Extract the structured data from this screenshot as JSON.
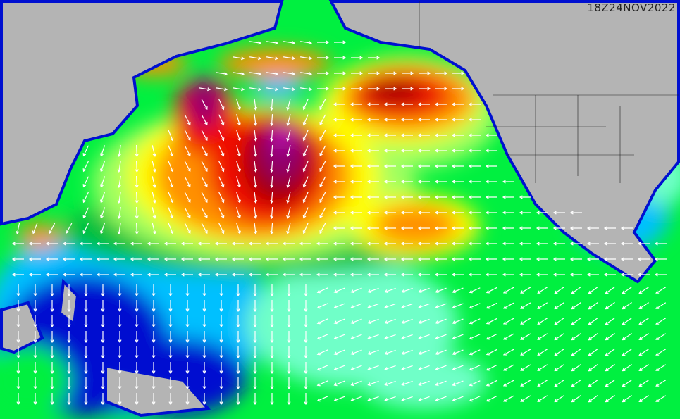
{
  "map": {
    "timestamp": "18Z24NOV2022",
    "colors": {
      "land": "#b4b4b4",
      "deep_blue": "#0010d0",
      "light_blue": "#00c0ff",
      "aqua": "#70ffc8",
      "green": "#00f040",
      "dark_green": "#00c040",
      "light_green": "#a0ff60",
      "yellow": "#ffff00",
      "orange": "#ff9000",
      "red": "#f01000",
      "dark_red": "#a00000",
      "purple": "#900070",
      "magenta": "#e020e0",
      "arrow": "#ffffff"
    }
  }
}
